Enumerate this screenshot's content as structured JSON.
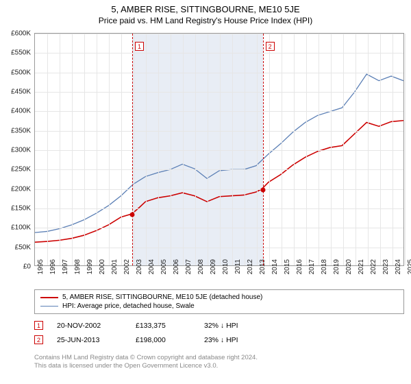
{
  "title": "5, AMBER RISE, SITTINGBOURNE, ME10 5JE",
  "subtitle": "Price paid vs. HM Land Registry's House Price Index (HPI)",
  "chart": {
    "type": "line",
    "background_color": "#ffffff",
    "grid_color": "#e6e6e6",
    "border_color": "#999999",
    "y_axis": {
      "min": 0,
      "max": 600000,
      "step": 50000,
      "labels": [
        "£0",
        "£50K",
        "£100K",
        "£150K",
        "£200K",
        "£250K",
        "£300K",
        "£350K",
        "£400K",
        "£450K",
        "£500K",
        "£550K",
        "£600K"
      ],
      "label_fontsize": 10
    },
    "x_axis": {
      "min": 1995,
      "max": 2025,
      "step": 1,
      "labels": [
        "1995",
        "1996",
        "1997",
        "1998",
        "1999",
        "2000",
        "2001",
        "2002",
        "2003",
        "2004",
        "2005",
        "2006",
        "2007",
        "2008",
        "2009",
        "2010",
        "2011",
        "2012",
        "2013",
        "2014",
        "2015",
        "2016",
        "2017",
        "2018",
        "2019",
        "2020",
        "2021",
        "2022",
        "2023",
        "2024",
        "2025"
      ],
      "label_fontsize": 10,
      "rotation": -90
    },
    "shaded_region": {
      "x_from": 2002.89,
      "x_to": 2013.48,
      "color": "#e8edf5"
    },
    "markers": [
      {
        "id": "1",
        "x": 2002.89,
        "box_y": 60
      },
      {
        "id": "2",
        "x": 2013.48,
        "box_y": 60
      }
    ],
    "series": [
      {
        "name": "5, AMBER RISE, SITTINGBOURNE, ME10 5JE (detached house)",
        "color": "#cc0000",
        "width": 1.6,
        "data": [
          [
            1995,
            60000
          ],
          [
            1996,
            62000
          ],
          [
            1997,
            65000
          ],
          [
            1998,
            70000
          ],
          [
            1999,
            78000
          ],
          [
            2000,
            90000
          ],
          [
            2001,
            105000
          ],
          [
            2002,
            125000
          ],
          [
            2002.89,
            133375
          ],
          [
            2003.5,
            150000
          ],
          [
            2004,
            165000
          ],
          [
            2005,
            175000
          ],
          [
            2006,
            180000
          ],
          [
            2007,
            188000
          ],
          [
            2008,
            180000
          ],
          [
            2009,
            165000
          ],
          [
            2010,
            178000
          ],
          [
            2011,
            180000
          ],
          [
            2012,
            182000
          ],
          [
            2013,
            190000
          ],
          [
            2013.48,
            198000
          ],
          [
            2014,
            215000
          ],
          [
            2015,
            235000
          ],
          [
            2016,
            260000
          ],
          [
            2017,
            280000
          ],
          [
            2018,
            295000
          ],
          [
            2019,
            305000
          ],
          [
            2020,
            310000
          ],
          [
            2021,
            340000
          ],
          [
            2022,
            370000
          ],
          [
            2023,
            360000
          ],
          [
            2024,
            372000
          ],
          [
            2025,
            375000
          ]
        ]
      },
      {
        "name": "HPI: Average price, detached house, Swale",
        "color": "#5b7fb5",
        "width": 1.3,
        "data": [
          [
            1995,
            85000
          ],
          [
            1996,
            88000
          ],
          [
            1997,
            95000
          ],
          [
            1998,
            105000
          ],
          [
            1999,
            118000
          ],
          [
            2000,
            135000
          ],
          [
            2001,
            155000
          ],
          [
            2002,
            180000
          ],
          [
            2003,
            210000
          ],
          [
            2004,
            230000
          ],
          [
            2005,
            240000
          ],
          [
            2006,
            248000
          ],
          [
            2007,
            262000
          ],
          [
            2008,
            250000
          ],
          [
            2009,
            225000
          ],
          [
            2010,
            245000
          ],
          [
            2011,
            248000
          ],
          [
            2012,
            248000
          ],
          [
            2013,
            258000
          ],
          [
            2014,
            288000
          ],
          [
            2015,
            315000
          ],
          [
            2016,
            345000
          ],
          [
            2017,
            370000
          ],
          [
            2018,
            388000
          ],
          [
            2019,
            398000
          ],
          [
            2020,
            408000
          ],
          [
            2021,
            448000
          ],
          [
            2022,
            495000
          ],
          [
            2023,
            478000
          ],
          [
            2024,
            490000
          ],
          [
            2025,
            478000
          ]
        ]
      }
    ],
    "sale_points": [
      {
        "x": 2002.89,
        "y": 133375
      },
      {
        "x": 2013.48,
        "y": 198000
      }
    ]
  },
  "legend": {
    "border_color": "#999999",
    "items": [
      {
        "color": "#cc0000",
        "width": 2,
        "label": "5, AMBER RISE, SITTINGBOURNE, ME10 5JE (detached house)"
      },
      {
        "color": "#5b7fb5",
        "width": 1.5,
        "label": "HPI: Average price, detached house, Swale"
      }
    ]
  },
  "sales": [
    {
      "idx": "1",
      "date": "20-NOV-2002",
      "price": "£133,375",
      "pct": "32% ↓ HPI"
    },
    {
      "idx": "2",
      "date": "25-JUN-2013",
      "price": "£198,000",
      "pct": "23% ↓ HPI"
    }
  ],
  "footer": {
    "line1": "Contains HM Land Registry data © Crown copyright and database right 2024.",
    "line2": "This data is licensed under the Open Government Licence v3.0."
  }
}
